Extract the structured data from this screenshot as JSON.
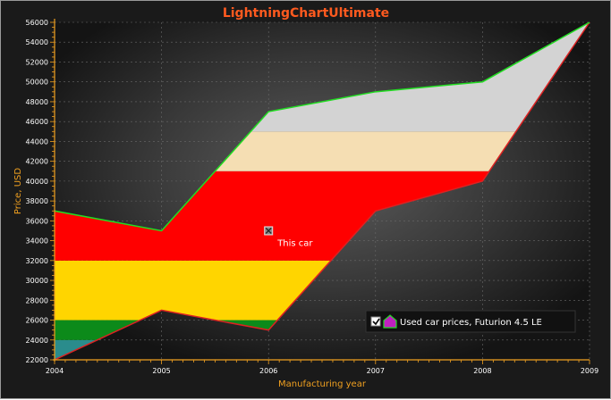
{
  "chart_data": {
    "type": "area",
    "title": "LightningChartUltimate",
    "xlabel": "Manufacturing year",
    "ylabel": "Price, USD",
    "xlim": [
      2004,
      2009
    ],
    "ylim": [
      22000,
      56000
    ],
    "x_ticks": [
      "2004",
      "2005",
      "2006",
      "2007",
      "2008",
      "2009"
    ],
    "y_ticks": [
      "22000",
      "24000",
      "26000",
      "28000",
      "30000",
      "32000",
      "34000",
      "36000",
      "38000",
      "40000",
      "42000",
      "44000",
      "46000",
      "48000",
      "50000",
      "52000",
      "54000",
      "56000"
    ],
    "x": [
      2004,
      2005,
      2006,
      2007,
      2008,
      2009
    ],
    "high": [
      37000,
      35000,
      47000,
      49000,
      50000,
      56000
    ],
    "low": [
      22000,
      27000,
      25000,
      37000,
      40000,
      56000
    ],
    "bands": [
      {
        "from": 22000,
        "to": 24000,
        "color": "#2a8c8c"
      },
      {
        "from": 24000,
        "to": 26000,
        "color": "#0c8a1a"
      },
      {
        "from": 26000,
        "to": 32000,
        "color": "#ffd500"
      },
      {
        "from": 32000,
        "to": 41000,
        "color": "#ff0000"
      },
      {
        "from": 41000,
        "to": 45000,
        "color": "#f5deb3"
      },
      {
        "from": 45000,
        "to": 56000,
        "color": "#d3d3d3"
      }
    ],
    "high_line_color": "#22dd22",
    "low_line_color": "#dd2222",
    "annotation": {
      "x": 2006,
      "y": 35000,
      "text": "This car"
    },
    "legend": {
      "label": "Used car prices, Futurion 4.5 LE",
      "checked": true,
      "placement": "bottom-right"
    },
    "grid": true
  }
}
